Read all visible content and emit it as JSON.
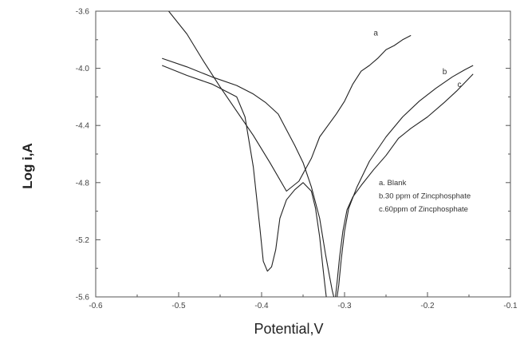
{
  "chart_data": {
    "type": "line",
    "title": "",
    "xlabel": "Potential,V",
    "ylabel": "Log i,A",
    "xlim": [
      -0.6,
      -0.1
    ],
    "ylim": [
      -5.6,
      -3.6
    ],
    "xticks": [
      "-0.6",
      "-0.5",
      "-0.4",
      "-0.3",
      "-0.2",
      "-0.1"
    ],
    "yticks": [
      "-5.6",
      "-5.2",
      "-4.8",
      "-4.4",
      "-4.0",
      "-3.6"
    ],
    "legend_lines": [
      "a. Blank",
      "b.30 ppm of Zincphosphate",
      "c.60ppm of Zincphosphate"
    ],
    "legend_position": "right-center",
    "grid": false,
    "series": [
      {
        "name": "a",
        "x": [
          -0.512,
          -0.49,
          -0.47,
          -0.45,
          -0.43,
          -0.41,
          -0.39,
          -0.37,
          -0.355,
          -0.34,
          -0.33,
          -0.32,
          -0.31,
          -0.3,
          -0.29,
          -0.28,
          -0.27,
          -0.26,
          -0.25,
          -0.24,
          -0.23,
          -0.22
        ],
        "y": [
          -3.6,
          -3.76,
          -3.95,
          -4.13,
          -4.3,
          -4.47,
          -4.66,
          -4.86,
          -4.79,
          -4.63,
          -4.48,
          -4.4,
          -4.32,
          -4.23,
          -4.11,
          -4.02,
          -3.98,
          -3.93,
          -3.87,
          -3.84,
          -3.8,
          -3.77
        ]
      },
      {
        "name": "b",
        "x": [
          -0.52,
          -0.49,
          -0.46,
          -0.43,
          -0.41,
          -0.395,
          -0.38,
          -0.37,
          -0.36,
          -0.35,
          -0.34,
          -0.33,
          -0.323,
          -0.318,
          -0.315,
          -0.313
        ],
        "y": [
          -3.93,
          -3.99,
          -4.06,
          -4.12,
          -4.18,
          -4.24,
          -4.32,
          -4.43,
          -4.54,
          -4.66,
          -4.83,
          -5.05,
          -5.3,
          -5.46,
          -5.55,
          -5.6
        ]
      },
      {
        "name": "b",
        "x": [
          -0.309,
          -0.307,
          -0.304,
          -0.3,
          -0.295,
          -0.285,
          -0.27,
          -0.25,
          -0.23,
          -0.21,
          -0.19,
          -0.17,
          -0.155,
          -0.145
        ],
        "y": [
          -5.6,
          -5.52,
          -5.34,
          -5.14,
          -4.98,
          -4.83,
          -4.65,
          -4.48,
          -4.34,
          -4.23,
          -4.14,
          -4.06,
          -4.01,
          -3.98
        ]
      },
      {
        "name": "c",
        "x": [
          -0.52,
          -0.49,
          -0.46,
          -0.43,
          -0.42,
          -0.41,
          -0.402,
          -0.398,
          -0.393,
          -0.388,
          -0.383,
          -0.378,
          -0.37,
          -0.36,
          -0.35,
          -0.34,
          -0.335,
          -0.33,
          -0.326,
          -0.324,
          -0.322
        ],
        "y": [
          -3.98,
          -4.05,
          -4.11,
          -4.2,
          -4.34,
          -4.69,
          -5.12,
          -5.35,
          -5.42,
          -5.39,
          -5.27,
          -5.05,
          -4.92,
          -4.85,
          -4.8,
          -4.86,
          -4.98,
          -5.18,
          -5.4,
          -5.5,
          -5.6
        ]
      },
      {
        "name": "c",
        "x": [
          -0.311,
          -0.309,
          -0.306,
          -0.302,
          -0.297,
          -0.29,
          -0.28,
          -0.265,
          -0.25,
          -0.235,
          -0.22,
          -0.2,
          -0.18,
          -0.165,
          -0.155,
          -0.145
        ],
        "y": [
          -5.6,
          -5.5,
          -5.32,
          -5.14,
          -4.99,
          -4.9,
          -4.82,
          -4.71,
          -4.61,
          -4.49,
          -4.42,
          -4.34,
          -4.24,
          -4.16,
          -4.1,
          -4.04
        ]
      }
    ],
    "curve_labels": [
      {
        "text": "a",
        "x": -0.265,
        "y": -3.77
      },
      {
        "text": "b",
        "x": -0.182,
        "y": -4.04
      },
      {
        "text": "c",
        "x": -0.164,
        "y": -4.13
      }
    ]
  }
}
